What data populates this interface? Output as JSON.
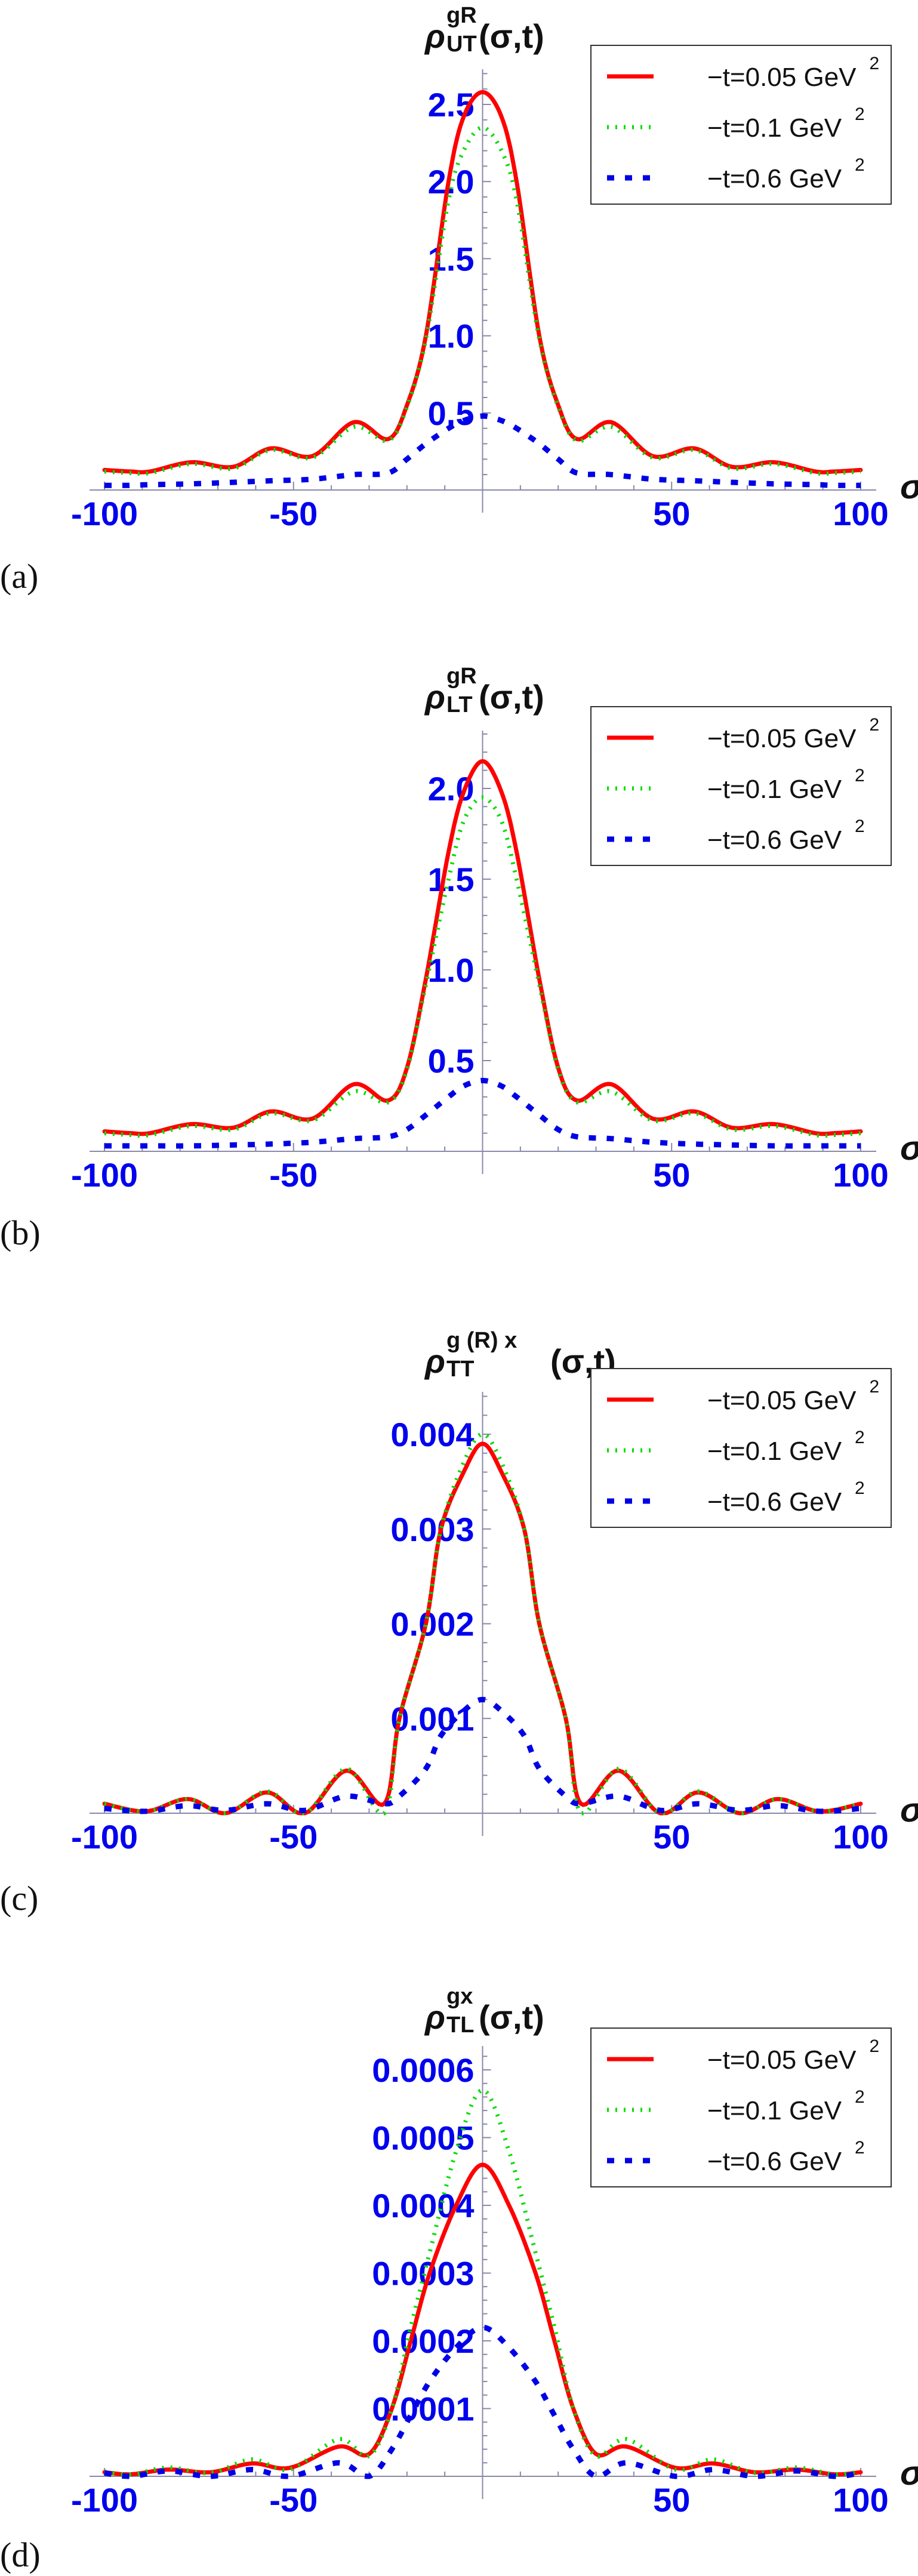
{
  "legend_colors": {
    "red": "#ff0000",
    "green": "#00dd00",
    "blue": "#0000e6"
  },
  "axis_color": "#8888aa",
  "chart_data": [
    {
      "type": "line",
      "panel_label": "(a)",
      "title": {
        "symbol": "ρ",
        "sup": "gR",
        "sub": "UT",
        "args": "(σ,t)"
      },
      "xlabel": "σ",
      "xlim": [
        -100,
        100
      ],
      "ylim": [
        0,
        2.6
      ],
      "x_ticks": [
        "-100",
        "-50",
        "50",
        "100"
      ],
      "x_tick_values": [
        -100,
        -50,
        50,
        100
      ],
      "y_ticks": [
        "0.5",
        "1.0",
        "1.5",
        "2.0",
        "2.5"
      ],
      "y_tick_values": [
        0.5,
        1.0,
        1.5,
        2.0,
        2.5
      ],
      "y_minor_step": 0.1,
      "legend_position": "top-right",
      "x": [
        -100,
        -93,
        -88,
        -77,
        -66,
        -56,
        -45,
        -34,
        -25,
        -20,
        -15,
        -9,
        -5,
        0,
        5,
        9,
        15,
        20,
        25,
        34,
        45,
        56,
        66,
        77,
        88,
        93,
        100
      ],
      "series": [
        {
          "name": "−t=0.05 GeV",
          "name_sup": "2",
          "style": "solid",
          "color": "#ff0000",
          "values": [
            0.13,
            0.12,
            0.12,
            0.18,
            0.15,
            0.27,
            0.22,
            0.44,
            0.33,
            0.55,
            1.0,
            2.0,
            2.42,
            2.58,
            2.42,
            2.0,
            1.0,
            0.55,
            0.33,
            0.44,
            0.22,
            0.27,
            0.15,
            0.18,
            0.12,
            0.12,
            0.13
          ]
        },
        {
          "name": "−t=0.1 GeV",
          "name_sup": "2",
          "style": "dotted",
          "color": "#00dd00",
          "values": [
            0.12,
            0.11,
            0.11,
            0.17,
            0.14,
            0.26,
            0.21,
            0.41,
            0.32,
            0.54,
            0.98,
            1.88,
            2.2,
            2.35,
            2.2,
            1.88,
            0.98,
            0.54,
            0.32,
            0.41,
            0.21,
            0.26,
            0.14,
            0.17,
            0.11,
            0.11,
            0.12
          ]
        },
        {
          "name": "−t=0.6 GeV",
          "name_sup": "2",
          "style": "dashed",
          "color": "#0000e6",
          "values": [
            0.03,
            0.03,
            0.035,
            0.04,
            0.05,
            0.06,
            0.07,
            0.1,
            0.11,
            0.2,
            0.3,
            0.4,
            0.45,
            0.48,
            0.45,
            0.4,
            0.3,
            0.2,
            0.11,
            0.1,
            0.07,
            0.06,
            0.05,
            0.04,
            0.035,
            0.03,
            0.03
          ]
        }
      ]
    },
    {
      "type": "line",
      "panel_label": "(b)",
      "title": {
        "symbol": "ρ",
        "sup": "gR",
        "sub": "LT",
        "args": "(σ,t)"
      },
      "xlabel": "σ",
      "xlim": [
        -100,
        100
      ],
      "ylim": [
        0,
        2.2
      ],
      "x_ticks": [
        "-100",
        "-50",
        "50",
        "100"
      ],
      "x_tick_values": [
        -100,
        -50,
        50,
        100
      ],
      "y_ticks": [
        "0.5",
        "1.0",
        "1.5",
        "2.0"
      ],
      "y_tick_values": [
        0.5,
        1.0,
        1.5,
        2.0
      ],
      "y_minor_step": 0.1,
      "legend_position": "top-right",
      "x": [
        -100,
        -93,
        -88,
        -77,
        -66,
        -56,
        -45,
        -34,
        -25,
        -20,
        -15,
        -9,
        -5,
        0,
        5,
        9,
        15,
        20,
        25,
        34,
        45,
        56,
        66,
        77,
        88,
        93,
        100
      ],
      "series": [
        {
          "name": "−t=0.05 GeV",
          "name_sup": "2",
          "style": "solid",
          "color": "#ff0000",
          "values": [
            0.11,
            0.1,
            0.1,
            0.15,
            0.13,
            0.22,
            0.18,
            0.37,
            0.28,
            0.46,
            0.95,
            1.65,
            1.98,
            2.15,
            1.98,
            1.65,
            0.95,
            0.46,
            0.28,
            0.37,
            0.18,
            0.22,
            0.13,
            0.15,
            0.1,
            0.1,
            0.11
          ]
        },
        {
          "name": "−t=0.1 GeV",
          "name_sup": "2",
          "style": "dotted",
          "color": "#00dd00",
          "values": [
            0.1,
            0.09,
            0.09,
            0.14,
            0.12,
            0.21,
            0.17,
            0.33,
            0.27,
            0.45,
            0.92,
            1.5,
            1.82,
            1.95,
            1.82,
            1.5,
            0.92,
            0.45,
            0.27,
            0.33,
            0.17,
            0.21,
            0.12,
            0.14,
            0.09,
            0.09,
            0.1
          ]
        },
        {
          "name": "−t=0.6 GeV",
          "name_sup": "2",
          "style": "dashed",
          "color": "#0000e6",
          "values": [
            0.03,
            0.03,
            0.03,
            0.03,
            0.035,
            0.04,
            0.05,
            0.07,
            0.08,
            0.12,
            0.2,
            0.3,
            0.36,
            0.39,
            0.36,
            0.3,
            0.2,
            0.12,
            0.08,
            0.07,
            0.05,
            0.04,
            0.035,
            0.03,
            0.03,
            0.03,
            0.03
          ]
        }
      ]
    },
    {
      "type": "line",
      "panel_label": "(c)",
      "title": {
        "symbol": "ρ",
        "sup": "g (R) x",
        "sub": "TT",
        "args": "(σ,t)"
      },
      "xlabel": "σ",
      "xlim": [
        -100,
        100
      ],
      "ylim": [
        0,
        0.0042
      ],
      "x_ticks": [
        "-100",
        "-50",
        "50",
        "100"
      ],
      "x_tick_values": [
        -100,
        -50,
        50,
        100
      ],
      "y_ticks": [
        "0.001",
        "0.002",
        "0.003",
        "0.004"
      ],
      "y_tick_values": [
        0.001,
        0.002,
        0.003,
        0.004
      ],
      "y_minor_step": 0.0002,
      "legend_position": "top-right",
      "x": [
        -100,
        -89,
        -78,
        -68,
        -57,
        -47,
        -36,
        -26,
        -22,
        -15,
        -11,
        -5,
        0,
        5,
        11,
        15,
        22,
        26,
        36,
        47,
        57,
        68,
        78,
        89,
        100
      ],
      "series": [
        {
          "name": "−t=0.05 GeV",
          "name_sup": "2",
          "style": "solid",
          "color": "#ff0000",
          "values": [
            0.0001,
            2e-05,
            0.00015,
            0.0,
            0.00022,
            0.0,
            0.00045,
            0.0001,
            0.001,
            0.002,
            0.003,
            0.0036,
            0.0039,
            0.0036,
            0.003,
            0.002,
            0.001,
            0.0001,
            0.00045,
            0.0,
            0.00022,
            0.0,
            0.00015,
            2e-05,
            0.0001
          ]
        },
        {
          "name": "−t=0.1 GeV",
          "name_sup": "2",
          "style": "dotted",
          "color": "#00dd00",
          "values": [
            0.0001,
            2e-05,
            0.00015,
            0.0,
            0.00023,
            0.0,
            0.00047,
            0.0,
            0.001,
            0.002,
            0.003,
            0.0037,
            0.004,
            0.0037,
            0.003,
            0.002,
            0.001,
            0.0,
            0.00047,
            0.0,
            0.00023,
            0.0,
            0.00015,
            2e-05,
            0.0001
          ]
        },
        {
          "name": "−t=0.6 GeV",
          "name_sup": "2",
          "style": "dashed",
          "color": "#0000e6",
          "values": [
            5e-05,
            2e-05,
            8e-05,
            3e-05,
            0.0001,
            3e-05,
            0.00018,
            0.0001,
            0.00018,
            0.00047,
            0.00082,
            0.00108,
            0.0012,
            0.00108,
            0.00082,
            0.00047,
            0.00018,
            0.0001,
            0.00018,
            3e-05,
            0.0001,
            3e-05,
            8e-05,
            2e-05,
            5e-05
          ]
        }
      ]
    },
    {
      "type": "line",
      "panel_label": "(d)",
      "title": {
        "symbol": "ρ",
        "sup": "gx",
        "sub": "TL",
        "args": "(σ,t)"
      },
      "xlabel": "σ",
      "xlim": [
        -100,
        100
      ],
      "ylim": [
        0,
        0.00063
      ],
      "x_ticks": [
        "-100",
        "-50",
        "50",
        "100"
      ],
      "x_tick_values": [
        -100,
        -50,
        50,
        100
      ],
      "y_ticks": [
        "0.0001",
        "0.0002",
        "0.0003",
        "0.0004",
        "0.0005",
        "0.0006"
      ],
      "y_tick_values": [
        0.0001,
        0.0002,
        0.0003,
        0.0004,
        0.0005,
        0.0006
      ],
      "y_minor_step": 2e-05,
      "legend_position": "top-right",
      "x": [
        -100,
        -93,
        -83,
        -72,
        -61,
        -51,
        -38,
        -30,
        -24,
        -19,
        -14,
        -7,
        0,
        7,
        14,
        19,
        24,
        30,
        38,
        51,
        61,
        72,
        83,
        93,
        100
      ],
      "series": [
        {
          "name": "−t=0.05 GeV",
          "name_sup": "2",
          "style": "solid",
          "color": "#ff0000",
          "values": [
            6e-06,
            3e-06,
            1e-05,
            6e-06,
            1.9e-05,
            1.25e-05,
            4.4e-05,
            3.3e-05,
            0.0001,
            0.0002,
            0.0003,
            0.0004,
            0.00046,
            0.0004,
            0.0003,
            0.0002,
            0.0001,
            3.3e-05,
            4.4e-05,
            1.25e-05,
            1.9e-05,
            6e-06,
            1e-05,
            3e-06,
            6e-06
          ]
        },
        {
          "name": "−t=0.1 GeV",
          "name_sup": "2",
          "style": "dotted",
          "color": "#00dd00",
          "values": [
            7e-06,
            3e-06,
            1.3e-05,
            5e-06,
            2.5e-05,
            1e-05,
            5.5e-05,
            3e-05,
            0.0001,
            0.00022,
            0.00033,
            0.00048,
            0.00057,
            0.00048,
            0.00033,
            0.00022,
            0.0001,
            3e-05,
            5.5e-05,
            1e-05,
            2.5e-05,
            5e-06,
            1.3e-05,
            3e-06,
            7e-06
          ]
        },
        {
          "name": "−t=0.6 GeV",
          "name_sup": "2",
          "style": "dashed",
          "color": "#0000e6",
          "values": [
            5e-06,
            0.0,
            8e-06,
            0.0,
            1e-05,
            0.0,
            2e-05,
            0.0,
            4e-05,
            9e-05,
            0.00014,
            0.00019,
            0.00022,
            0.00019,
            0.00014,
            9e-05,
            4e-05,
            0.0,
            2e-05,
            0.0,
            1e-05,
            0.0,
            8e-06,
            0.0,
            5e-06
          ]
        }
      ]
    }
  ]
}
